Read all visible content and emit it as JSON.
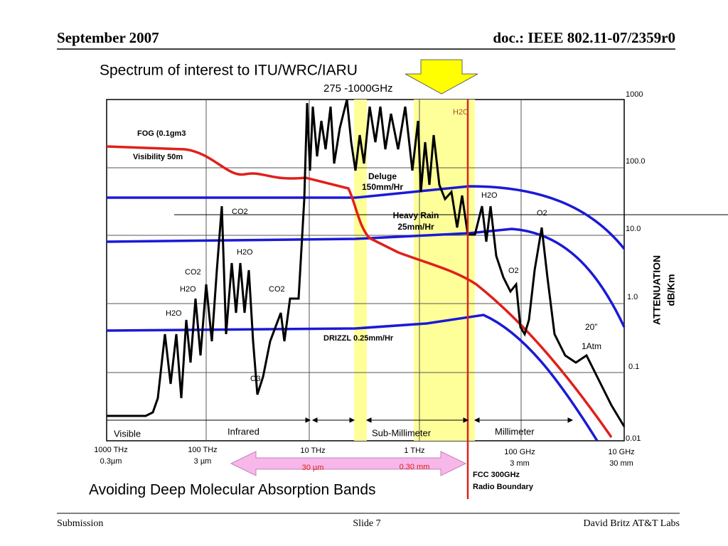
{
  "header": {
    "date": "September 2007",
    "doc": "doc.: IEEE 802.11-07/2359r0"
  },
  "title": "Spectrum of interest to ITU/WRC/IARU",
  "subtitle": "275 -1000GHz",
  "chart": {
    "y_labels": [
      "1000",
      "100.0",
      "10.0",
      "1.0",
      "0.1",
      "0.01"
    ],
    "y_title": [
      "ATTENUATION",
      "dB/Km"
    ],
    "curve_labels": [
      "FOG (0.1gm3",
      "Visibility 50m",
      "Deluge",
      "150mm/Hr",
      "Heavy Rain",
      "25mm/Hr",
      "DRIZZL 0.25mm/Hr",
      "20”",
      "1Atm"
    ],
    "molecule_labels": [
      "CO2",
      "H2O",
      "CO2",
      "H2O",
      "CO2",
      "H2O",
      "O3",
      "H2O",
      "H2O",
      "O2",
      "O2"
    ],
    "bands": [
      "Visible",
      "Infrared",
      "Sub-Millimeter",
      "Millimeter"
    ],
    "x_labels": [
      [
        "1000 THz",
        "0.3µm"
      ],
      [
        "100 THz",
        "3 µm"
      ],
      [
        "10 THz",
        "30 µm"
      ],
      [
        "1 THz",
        "0.30 mm"
      ],
      [
        "100 GHz",
        "3 mm"
      ],
      [
        "10 GHz",
        "30 mm"
      ]
    ],
    "boundary": [
      "FCC 300GHz",
      "Radio Boundary"
    ]
  },
  "caption": "Avoiding Deep Molecular Absorption Bands",
  "footer": {
    "left": "Submission",
    "center": "Slide 7",
    "right": "David Britz AT&T Labs"
  }
}
